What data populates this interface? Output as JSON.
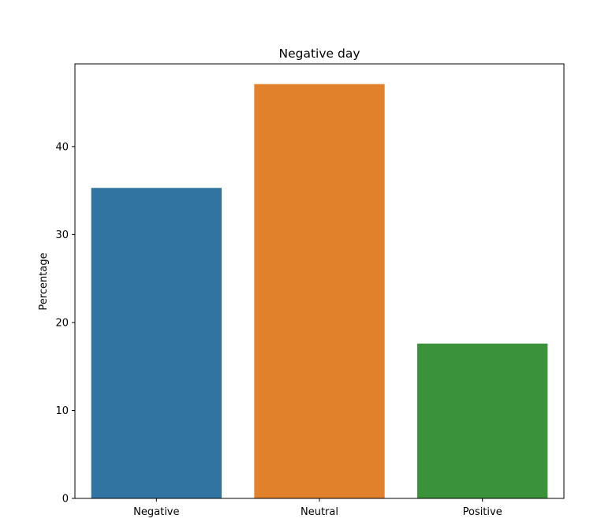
{
  "chart_data": {
    "type": "bar",
    "title": "Negative day",
    "xlabel": "",
    "ylabel": "Percentage",
    "categories": [
      "Negative",
      "Neutral",
      "Positive"
    ],
    "values": [
      35.3,
      47.1,
      17.6
    ],
    "colors": [
      "#3274a1",
      "#e1812c",
      "#3a923a"
    ],
    "ylim": [
      0,
      49.4
    ],
    "yticks": [
      0,
      10,
      20,
      30,
      40
    ],
    "grid": false,
    "legend": "none"
  }
}
